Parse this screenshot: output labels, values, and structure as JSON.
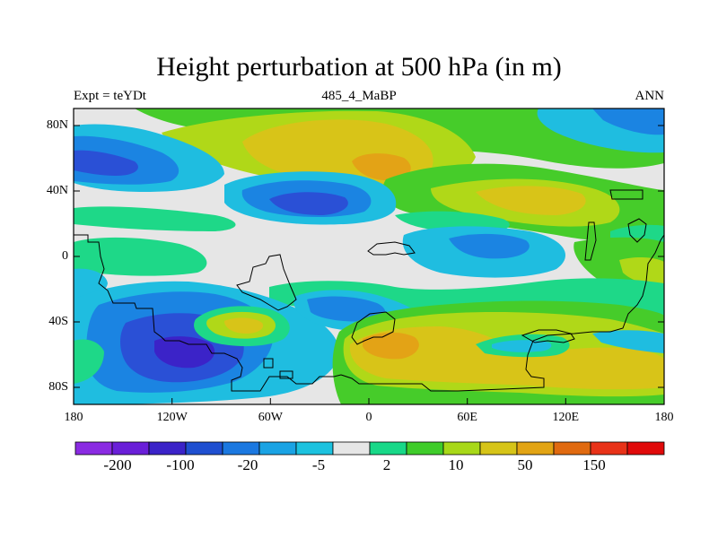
{
  "figure": {
    "title": "Height perturbation at 500 hPa (in m)",
    "left_string": "Expt = teYDt",
    "center_string": "485_4_MaBP",
    "right_string": "ANN"
  },
  "map": {
    "projection": "cylindrical equidistant",
    "lon_range": [
      -180,
      180
    ],
    "lat_range": [
      -90,
      90
    ],
    "x_tick_labels": [
      "180",
      "120W",
      "60W",
      "0",
      "60E",
      "120E",
      "180"
    ],
    "y_tick_labels": [
      "80N",
      "40N",
      "0",
      "40S",
      "80S"
    ],
    "coastlines": "coarse paleogeography outline"
  },
  "colorbar": {
    "labels": [
      "-200",
      "-100",
      "-20",
      "-5",
      "2",
      "10",
      "50",
      "150"
    ],
    "colors": [
      "#8a2be2",
      "#6a1fd8",
      "#3b23c8",
      "#1f4fd0",
      "#1b78e0",
      "#1aa3e4",
      "#1cc2df",
      "#e6e6e6",
      "#18d888",
      "#3fcc2a",
      "#a8d818",
      "#d6c418",
      "#e2a414",
      "#e06a10",
      "#e83218",
      "#e00a0a"
    ]
  },
  "legend_colors": {
    "blue_strong": "#2a50d6",
    "blue_mid": "#1b84e2",
    "cyan": "#1fbde0",
    "neutral": "#e6e6e6",
    "green_light": "#1ed888",
    "green": "#46cc2a",
    "yellow_green": "#b0d818",
    "yellow": "#d8c418",
    "orange": "#e3a316"
  }
}
